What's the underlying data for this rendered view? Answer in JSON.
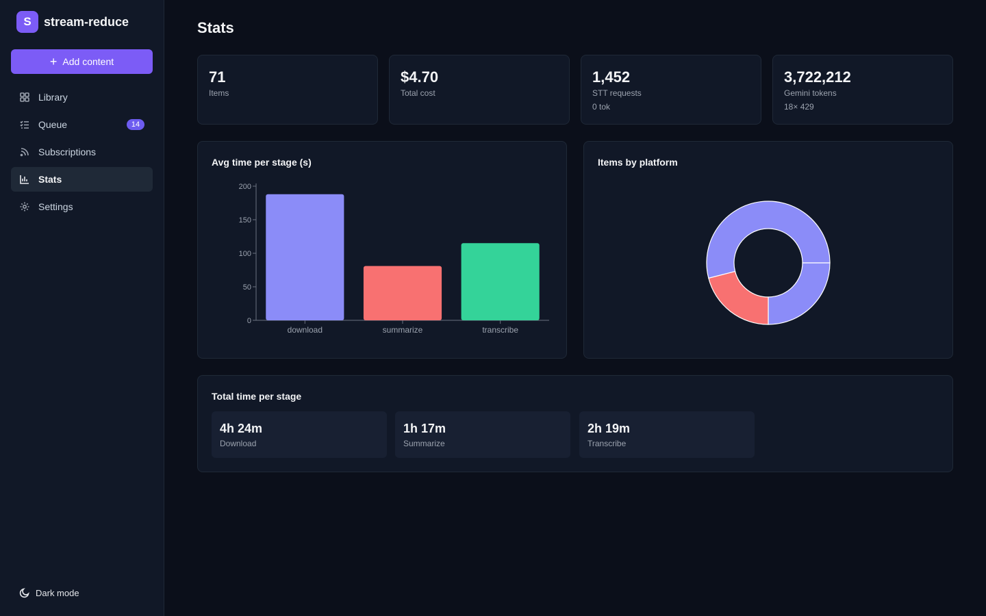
{
  "app": {
    "logo_letter": "S",
    "name": "stream-reduce"
  },
  "sidebar": {
    "add_button": "Add content",
    "items": [
      {
        "label": "Library",
        "icon": "grid-icon"
      },
      {
        "label": "Queue",
        "icon": "list-check-icon",
        "badge": "14"
      },
      {
        "label": "Subscriptions",
        "icon": "rss-icon"
      },
      {
        "label": "Stats",
        "icon": "bar-chart-icon",
        "active": true
      },
      {
        "label": "Settings",
        "icon": "gear-icon"
      }
    ],
    "dark_mode_label": "Dark mode"
  },
  "page": {
    "title": "Stats"
  },
  "stats": [
    {
      "value": "71",
      "label": "Items",
      "sub": ""
    },
    {
      "value": "$4.70",
      "label": "Total cost",
      "sub": ""
    },
    {
      "value": "1,452",
      "label": "STT requests",
      "sub": "0 tok"
    },
    {
      "value": "3,722,212",
      "label": "Gemini tokens",
      "sub": "18× 429"
    }
  ],
  "avg_chart_title": "Avg time per stage (s)",
  "platform_chart_title": "Items by platform",
  "total_time": {
    "title": "Total time per stage",
    "stages": [
      {
        "value": "4h 24m",
        "label": "Download"
      },
      {
        "value": "1h 17m",
        "label": "Summarize"
      },
      {
        "value": "2h 19m",
        "label": "Transcribe"
      }
    ]
  },
  "chart_data": [
    {
      "type": "bar",
      "title": "Avg time per stage (s)",
      "categories": [
        "download",
        "summarize",
        "transcribe"
      ],
      "values": [
        188,
        81,
        115
      ],
      "colors": [
        "#8b8cf8",
        "#f87171",
        "#34d399"
      ],
      "ylim": [
        0,
        200
      ],
      "yticks": [
        0,
        50,
        100,
        150,
        200
      ],
      "grid": false
    },
    {
      "type": "pie",
      "title": "Items by platform",
      "donut": true,
      "values": [
        25,
        21,
        54
      ],
      "colors": [
        "#8b8cf8",
        "#f87171",
        "#8b8cf8"
      ]
    }
  ]
}
